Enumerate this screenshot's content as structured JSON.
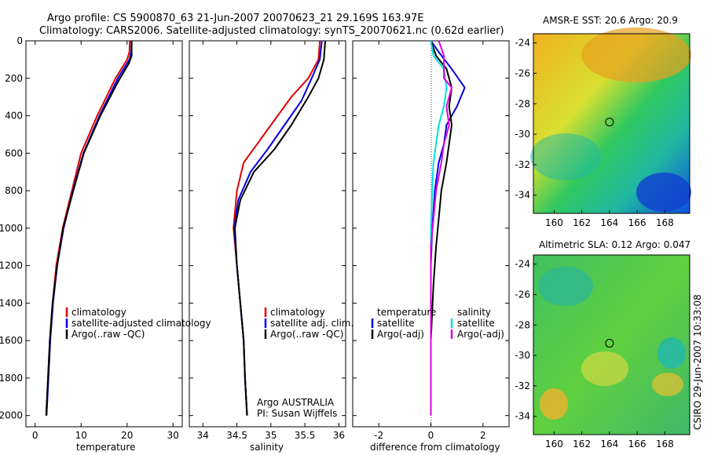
{
  "header": {
    "line1": "Argo profile: CS 5900870_63 21-Jun-2007 20070623_21 29.169S 163.97E",
    "line2": "Climatology: CARS2006. Satellite-adjusted climatology: synTS_20070621.nc (0.62d earlier)"
  },
  "credits": {
    "argo": "Argo AUSTRALIA",
    "pi": "PI: Susan Wijffels",
    "csiro": "CSIRO 29-Jun-2007 10:33:08"
  },
  "colors": {
    "red": "#e00000",
    "blue": "#0000e0",
    "black": "#000000",
    "cyan": "#00e0e0",
    "magenta": "#e000e0"
  },
  "chart_data": [
    {
      "type": "line",
      "id": "temperature",
      "xlabel": "temperature",
      "ylabel": "",
      "xlim": [
        -2,
        32
      ],
      "ylim": [
        2060,
        0
      ],
      "x_ticks": [
        0,
        10,
        20,
        30
      ],
      "y_ticks": [
        0,
        200,
        400,
        600,
        800,
        1000,
        1200,
        1400,
        1600,
        1800,
        2000
      ],
      "legend": [
        "climatology",
        "satellite-adjusted climatology",
        "Argo(..raw -QC)"
      ],
      "series": [
        {
          "name": "climatology",
          "color": "red",
          "points": [
            [
              20.6,
              0
            ],
            [
              20.5,
              60
            ],
            [
              20.0,
              100
            ],
            [
              17.5,
              200
            ],
            [
              13.5,
              400
            ],
            [
              10.0,
              600
            ],
            [
              8.0,
              800
            ],
            [
              6.0,
              1000
            ],
            [
              4.6,
              1200
            ],
            [
              3.8,
              1400
            ],
            [
              3.2,
              1600
            ],
            [
              2.8,
              1800
            ],
            [
              2.4,
              2000
            ]
          ]
        },
        {
          "name": "satellite-adjusted climatology",
          "color": "blue",
          "points": [
            [
              21.0,
              0
            ],
            [
              20.9,
              60
            ],
            [
              20.5,
              100
            ],
            [
              18.0,
              200
            ],
            [
              14.0,
              400
            ],
            [
              10.5,
              600
            ],
            [
              8.2,
              800
            ],
            [
              6.2,
              1000
            ],
            [
              4.8,
              1200
            ],
            [
              3.9,
              1400
            ],
            [
              3.3,
              1600
            ],
            [
              2.9,
              1800
            ],
            [
              2.5,
              2000
            ]
          ]
        },
        {
          "name": "Argo(..raw -QC)",
          "color": "black",
          "points": [
            [
              21.0,
              0
            ],
            [
              21.0,
              80
            ],
            [
              20.4,
              120
            ],
            [
              18.0,
              220
            ],
            [
              14.2,
              400
            ],
            [
              10.6,
              600
            ],
            [
              8.3,
              800
            ],
            [
              6.1,
              1000
            ],
            [
              4.8,
              1200
            ],
            [
              3.8,
              1400
            ],
            [
              3.2,
              1600
            ],
            [
              2.8,
              1800
            ],
            [
              2.4,
              2000
            ]
          ]
        }
      ]
    },
    {
      "type": "line",
      "id": "salinity",
      "xlabel": "salinity",
      "ylabel": "",
      "xlim": [
        33.8,
        36.1
      ],
      "ylim": [
        2060,
        0
      ],
      "x_ticks": [
        34,
        34.5,
        35,
        35.5,
        36
      ],
      "legend": [
        "climatology",
        "satellite adj. clim.",
        "Argo(..raw -QC)"
      ],
      "series": [
        {
          "name": "climatology",
          "color": "red",
          "points": [
            [
              35.72,
              0
            ],
            [
              35.7,
              100
            ],
            [
              35.55,
              200
            ],
            [
              35.3,
              300
            ],
            [
              35.0,
              450
            ],
            [
              34.8,
              550
            ],
            [
              34.6,
              650
            ],
            [
              34.5,
              800
            ],
            [
              34.45,
              1000
            ],
            [
              34.5,
              1200
            ],
            [
              34.55,
              1400
            ],
            [
              34.6,
              1600
            ],
            [
              34.62,
              1800
            ],
            [
              34.65,
              2000
            ]
          ]
        },
        {
          "name": "satellite adj. clim.",
          "color": "blue",
          "points": [
            [
              35.75,
              0
            ],
            [
              35.72,
              100
            ],
            [
              35.6,
              200
            ],
            [
              35.45,
              320
            ],
            [
              35.2,
              450
            ],
            [
              34.95,
              580
            ],
            [
              34.7,
              700
            ],
            [
              34.52,
              850
            ],
            [
              34.46,
              1000
            ],
            [
              34.5,
              1200
            ],
            [
              34.55,
              1400
            ],
            [
              34.6,
              1600
            ],
            [
              34.62,
              1800
            ],
            [
              34.65,
              2000
            ]
          ]
        },
        {
          "name": "Argo(..raw -QC)",
          "color": "black",
          "points": [
            [
              35.8,
              0
            ],
            [
              35.78,
              100
            ],
            [
              35.7,
              200
            ],
            [
              35.55,
              300
            ],
            [
              35.3,
              450
            ],
            [
              35.05,
              580
            ],
            [
              34.75,
              700
            ],
            [
              34.55,
              850
            ],
            [
              34.47,
              1000
            ],
            [
              34.5,
              1200
            ],
            [
              34.55,
              1400
            ],
            [
              34.6,
              1600
            ],
            [
              34.62,
              1800
            ],
            [
              34.65,
              2000
            ]
          ]
        }
      ]
    },
    {
      "type": "line",
      "id": "difference",
      "xlabel": "difference from climatology",
      "ylabel": "",
      "xlim": [
        -3,
        3
      ],
      "ylim": [
        2060,
        0
      ],
      "x_ticks": [
        -2,
        0,
        2
      ],
      "legend": {
        "temperature": [
          "satellite",
          "Argo(-adj)"
        ],
        "salinity": [
          "satellite",
          "Argo(-adj)"
        ]
      },
      "series": [
        {
          "name": "temperature satellite",
          "color": "blue",
          "points": [
            [
              0.0,
              0
            ],
            [
              0.3,
              60
            ],
            [
              0.8,
              150
            ],
            [
              1.3,
              250
            ],
            [
              1.0,
              350
            ],
            [
              0.6,
              450
            ],
            [
              0.5,
              550
            ],
            [
              0.3,
              650
            ],
            [
              0.15,
              800
            ],
            [
              0.05,
              1000
            ],
            [
              0.0,
              1200
            ],
            [
              0.0,
              1600
            ],
            [
              0.0,
              2000
            ]
          ]
        },
        {
          "name": "temperature Argo(-adj)",
          "color": "black",
          "points": [
            [
              0.0,
              0
            ],
            [
              0.2,
              80
            ],
            [
              0.6,
              150
            ],
            [
              0.8,
              250
            ],
            [
              0.7,
              350
            ],
            [
              0.8,
              450
            ],
            [
              0.7,
              550
            ],
            [
              0.6,
              650
            ],
            [
              0.4,
              800
            ],
            [
              0.3,
              950
            ],
            [
              0.2,
              1100
            ],
            [
              0.1,
              1300
            ],
            [
              0.0,
              1600
            ],
            [
              0.0,
              2000
            ]
          ]
        },
        {
          "name": "salinity satellite",
          "color": "cyan",
          "points": [
            [
              0.0,
              0
            ],
            [
              0.1,
              80
            ],
            [
              0.5,
              150
            ],
            [
              0.6,
              250
            ],
            [
              0.5,
              350
            ],
            [
              0.3,
              450
            ],
            [
              0.2,
              550
            ],
            [
              0.1,
              650
            ],
            [
              0.05,
              800
            ],
            [
              0.0,
              1000
            ],
            [
              0.0,
              1400
            ],
            [
              0.0,
              2000
            ]
          ]
        },
        {
          "name": "salinity Argo(-adj)",
          "color": "magenta",
          "points": [
            [
              0.3,
              0
            ],
            [
              0.5,
              80
            ],
            [
              0.5,
              200
            ],
            [
              0.8,
              250
            ],
            [
              0.6,
              350
            ],
            [
              0.7,
              450
            ],
            [
              0.5,
              550
            ],
            [
              0.4,
              650
            ],
            [
              0.2,
              800
            ],
            [
              0.1,
              950
            ],
            [
              0.0,
              1100
            ],
            [
              0.0,
              1300
            ],
            [
              0.0,
              2000
            ]
          ]
        }
      ]
    },
    {
      "type": "heatmap",
      "id": "sst-map",
      "title": "AMSR-E SST: 20.6 Argo: 20.9",
      "xlim": [
        158.5,
        169.8
      ],
      "ylim": [
        -35.2,
        -23.4
      ],
      "x_ticks": [
        160,
        162,
        164,
        166,
        168
      ],
      "y_ticks": [
        -24,
        -26,
        -28,
        -30,
        -32,
        -34
      ],
      "markers": [
        [
          164,
          -29.2
        ]
      ]
    },
    {
      "type": "heatmap",
      "id": "sla-map",
      "title": "Altimetric SLA: 0.12 Argo: 0.047",
      "xlim": [
        158.5,
        169.8
      ],
      "ylim": [
        -35.2,
        -23.4
      ],
      "x_ticks": [
        160,
        162,
        164,
        166,
        168
      ],
      "y_ticks": [
        -24,
        -26,
        -28,
        -30,
        -32,
        -34
      ],
      "markers": [
        [
          164,
          -29.2
        ]
      ]
    }
  ]
}
